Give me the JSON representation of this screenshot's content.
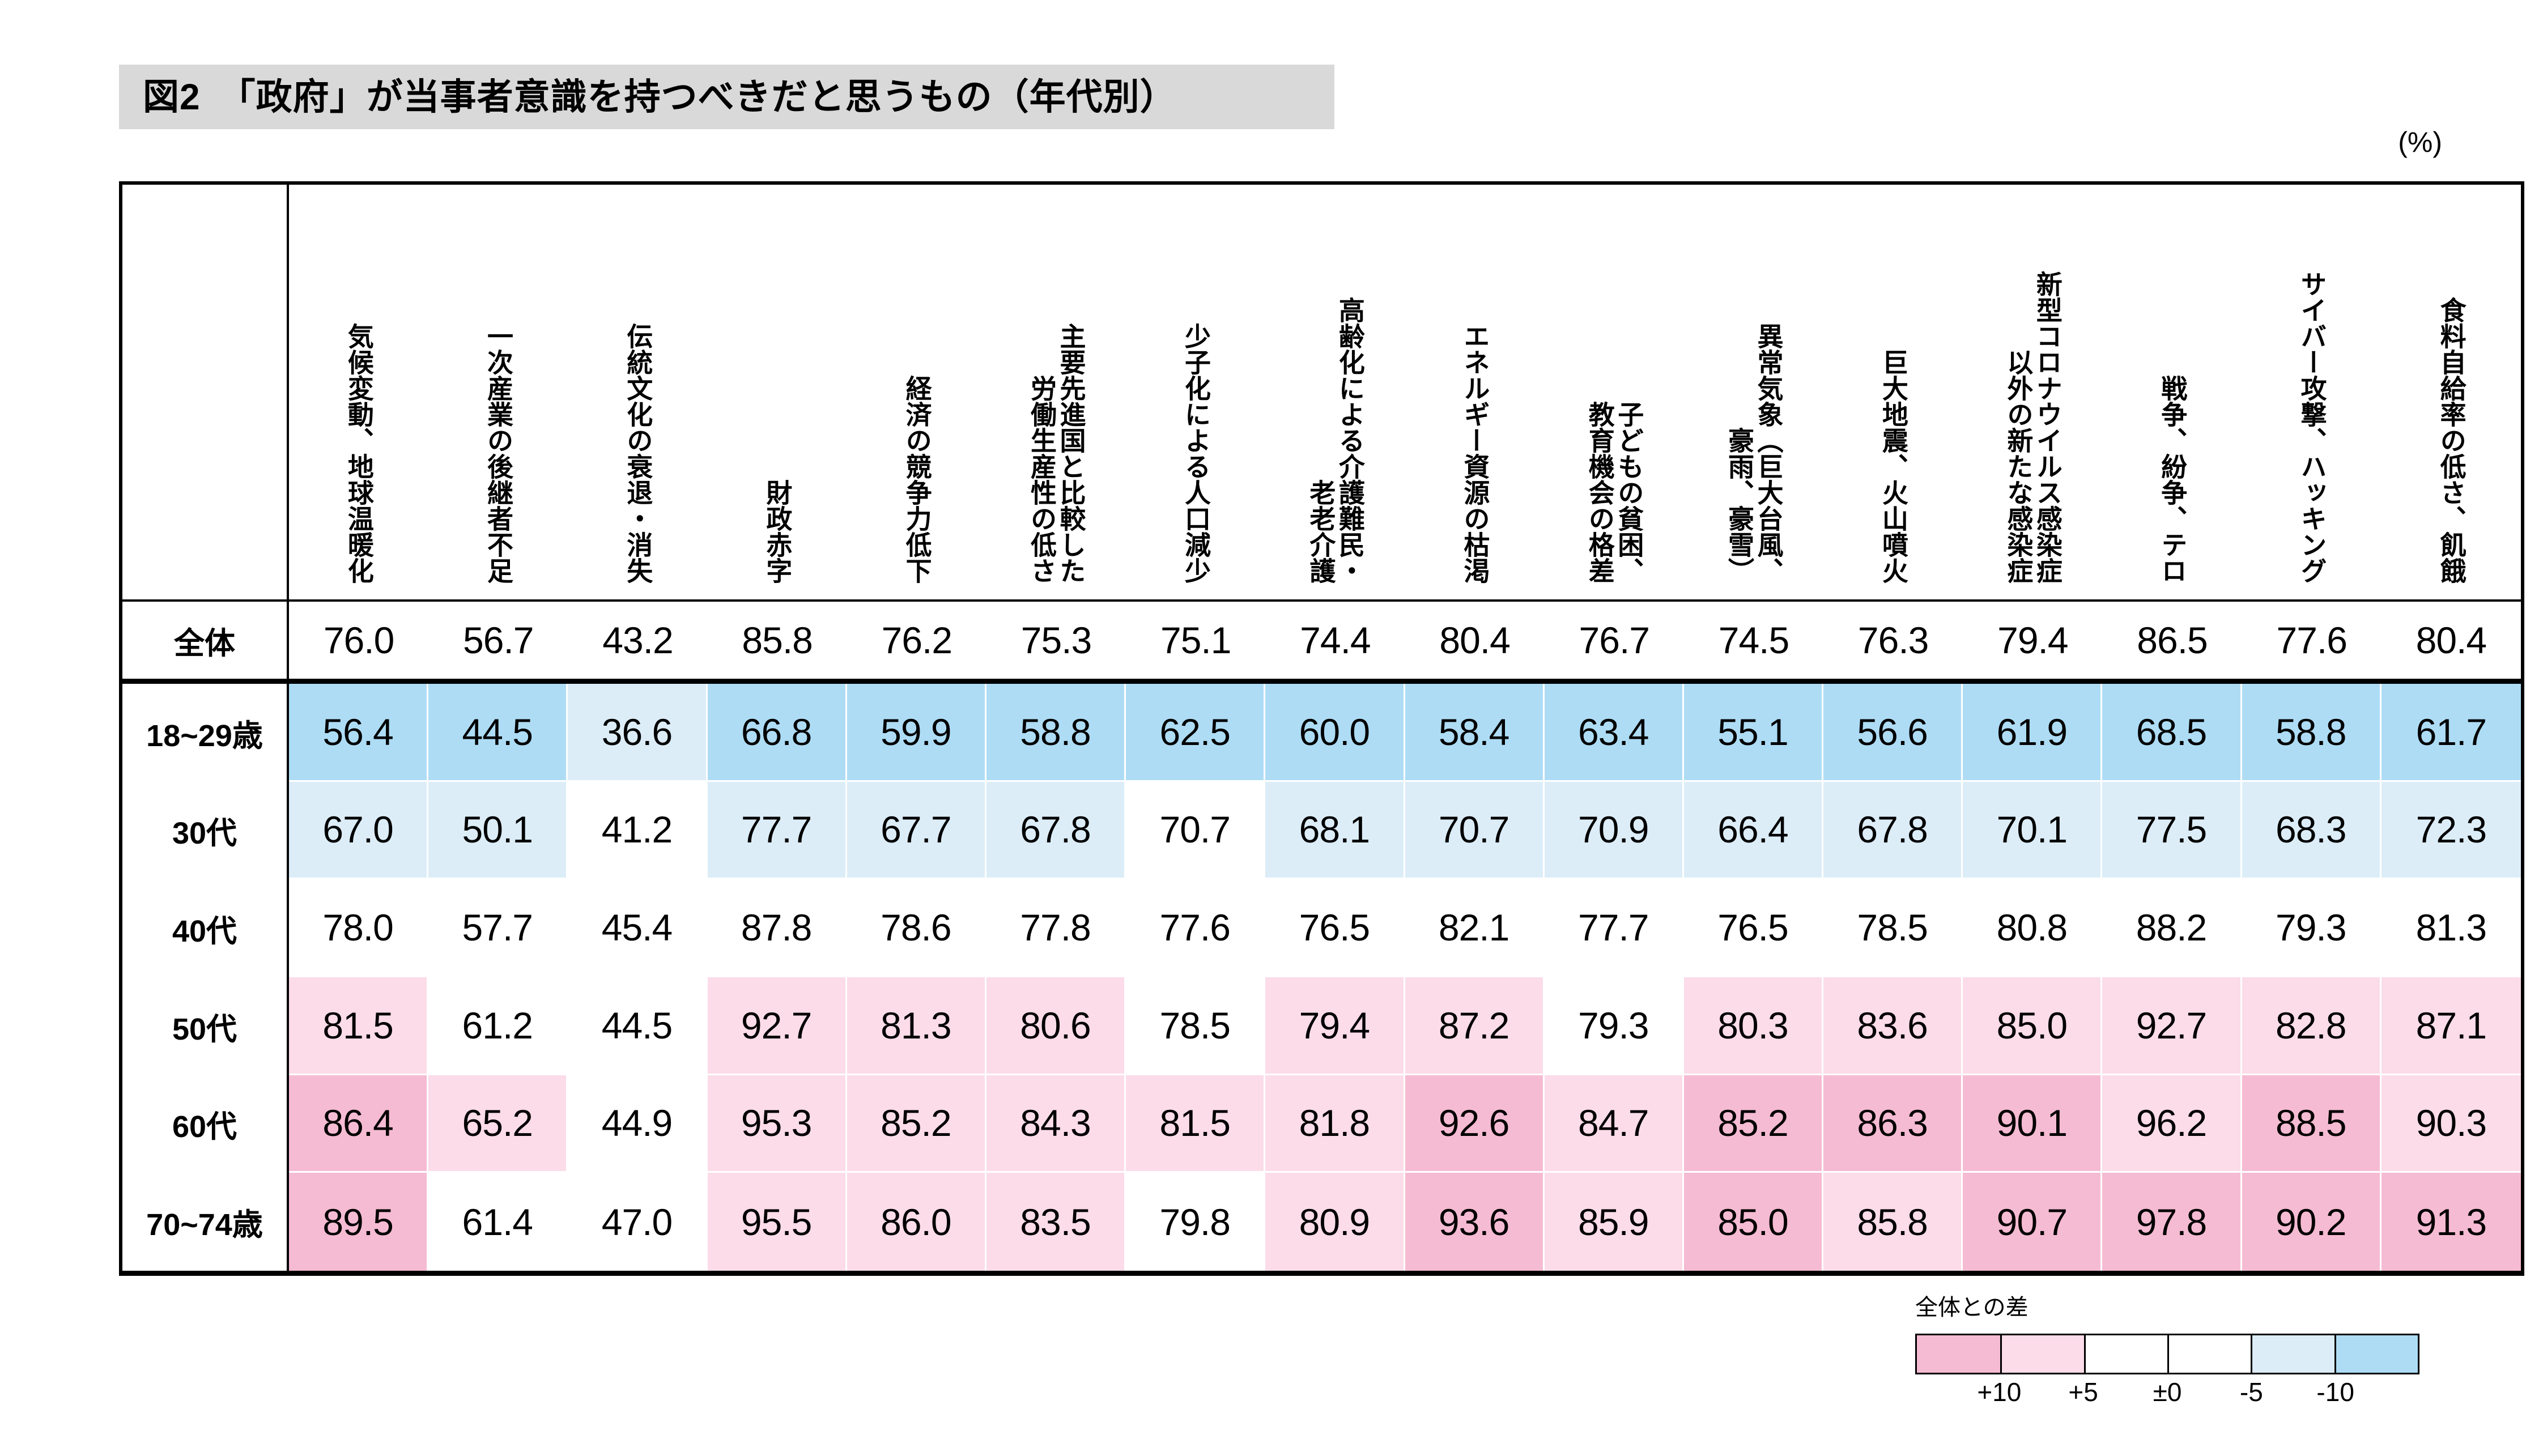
{
  "title": "図2　「政府」が当事者意識を持つべきだと思うもの（年代別）",
  "unit_label": "(%)",
  "colors": {
    "title_band": "#d9d9d9",
    "border": "#000000"
  },
  "code_colors": {
    "D": "#f5bbd2",
    "P": "#fbdce8",
    "W": "#ffffff",
    "L": "#dcedf8",
    "B": "#aedcf5"
  },
  "legend": {
    "title": "全体との差",
    "labels": [
      "+10",
      "+5",
      "±0",
      "-5",
      "-10"
    ],
    "swatch_colors": [
      "#f5bbd2",
      "#fbdce8",
      "#ffffff",
      "#ffffff",
      "#dcedf8",
      "#aedcf5"
    ]
  },
  "chart_data": {
    "type": "heatmap",
    "title": "図2　「政府」が当事者意識を持つべきだと思うもの（年代別）",
    "unit": "%",
    "legend_title": "全体との差",
    "legend_thresholds": [
      "+10",
      "+5",
      "±0",
      "-5",
      "-10"
    ],
    "columns": [
      "気候変動、地球温暖化",
      "一次産業の後継者不足",
      "伝統文化の衰退・消失",
      "財政赤字",
      "経済の競争力低下",
      "主要先進国と比較した\n労働生産性の低さ",
      "少子化による人口減少",
      "高齢化による介護難民・\n老老介護",
      "エネルギー資源の枯渇",
      "子どもの貧困、\n教育機会の格差",
      "異常気象（巨大台風、\n豪雨、豪雪）",
      "巨大地震、火山噴火",
      "新型コロナウイルス感染症\n以外の新たな感染症",
      "戦争、紛争、テロ",
      "サイバー攻撃、ハッキング",
      "食料自給率の低さ、飢餓"
    ],
    "rows": [
      {
        "label": "全体",
        "values": [
          "76.0",
          "56.7",
          "43.2",
          "85.8",
          "76.2",
          "75.3",
          "75.1",
          "74.4",
          "80.4",
          "76.7",
          "74.5",
          "76.3",
          "79.4",
          "86.5",
          "77.6",
          "80.4"
        ],
        "codes": "WWWWWWWWWWWWWWWW"
      },
      {
        "label": "18~29歳",
        "values": [
          "56.4",
          "44.5",
          "36.6",
          "66.8",
          "59.9",
          "58.8",
          "62.5",
          "60.0",
          "58.4",
          "63.4",
          "55.1",
          "56.6",
          "61.9",
          "68.5",
          "58.8",
          "61.7"
        ],
        "codes": "BBLBBBBBBBBBBBBB"
      },
      {
        "label": "30代",
        "values": [
          "67.0",
          "50.1",
          "41.2",
          "77.7",
          "67.7",
          "67.8",
          "70.7",
          "68.1",
          "70.7",
          "70.9",
          "66.4",
          "67.8",
          "70.1",
          "77.5",
          "68.3",
          "72.3"
        ],
        "codes": "LLWLLLWLLLLLLLLL"
      },
      {
        "label": "40代",
        "values": [
          "78.0",
          "57.7",
          "45.4",
          "87.8",
          "78.6",
          "77.8",
          "77.6",
          "76.5",
          "82.1",
          "77.7",
          "76.5",
          "78.5",
          "80.8",
          "88.2",
          "79.3",
          "81.3"
        ],
        "codes": "WWWWWWWWWWWWWWWW"
      },
      {
        "label": "50代",
        "values": [
          "81.5",
          "61.2",
          "44.5",
          "92.7",
          "81.3",
          "80.6",
          "78.5",
          "79.4",
          "87.2",
          "79.3",
          "80.3",
          "83.6",
          "85.0",
          "92.7",
          "82.8",
          "87.1"
        ],
        "codes": "PWWPPPWPPWPPPPPP"
      },
      {
        "label": "60代",
        "values": [
          "86.4",
          "65.2",
          "44.9",
          "95.3",
          "85.2",
          "84.3",
          "81.5",
          "81.8",
          "92.6",
          "84.7",
          "85.2",
          "86.3",
          "90.1",
          "96.2",
          "88.5",
          "90.3"
        ],
        "codes": "DPWPPPPPDPDDDPDP"
      },
      {
        "label": "70~74歳",
        "values": [
          "89.5",
          "61.4",
          "47.0",
          "95.5",
          "86.0",
          "83.5",
          "79.8",
          "80.9",
          "93.6",
          "85.9",
          "85.0",
          "85.8",
          "90.7",
          "97.8",
          "90.2",
          "91.3"
        ],
        "codes": "DWWPPPWPDPDPDDDD"
      }
    ]
  }
}
